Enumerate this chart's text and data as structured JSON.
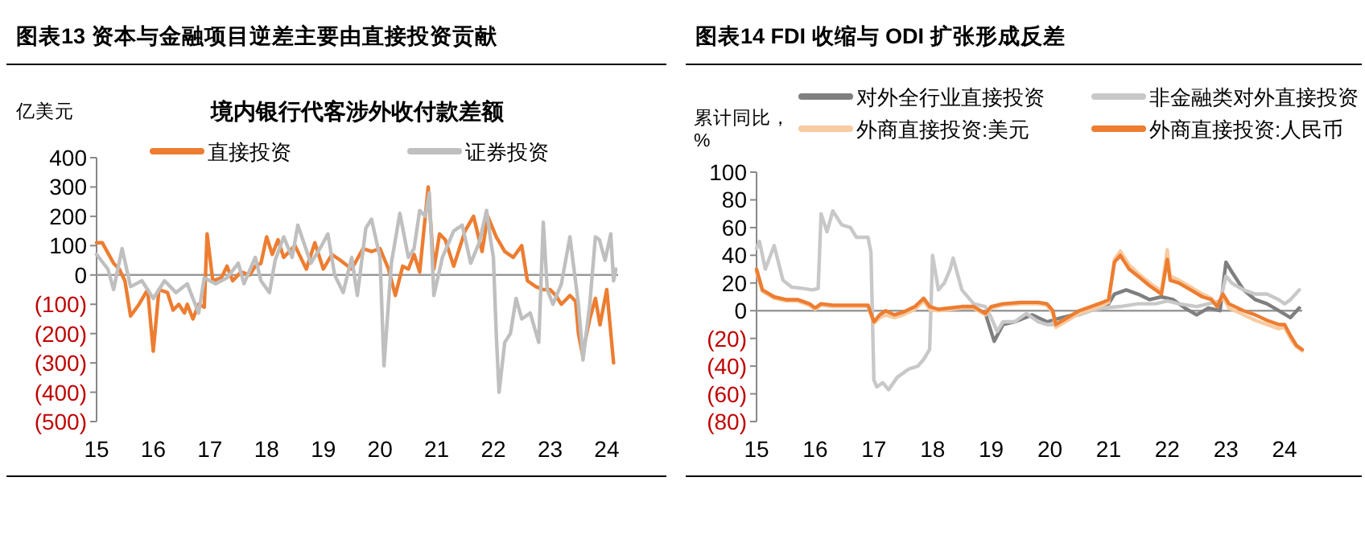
{
  "chart_data": [
    {
      "type": "line",
      "title": "图表13   资本与金融项目逆差主要由直接投资贡献",
      "subtitle": "境内银行代客涉外收付款差额",
      "ylabel": "亿美元",
      "legend": "top",
      "xlim": [
        2015,
        2024.2
      ],
      "xticks": [
        {
          "value": 2015,
          "label": "15"
        },
        {
          "value": 2016,
          "label": "16"
        },
        {
          "value": 2017,
          "label": "17"
        },
        {
          "value": 2018,
          "label": "18"
        },
        {
          "value": 2019,
          "label": "19"
        },
        {
          "value": 2020,
          "label": "20"
        },
        {
          "value": 2021,
          "label": "21"
        },
        {
          "value": 2022,
          "label": "22"
        },
        {
          "value": 2023,
          "label": "23"
        },
        {
          "value": 2024,
          "label": "24"
        }
      ],
      "ylim": [
        -500,
        400
      ],
      "yticks": [
        {
          "value": 400,
          "label": "400"
        },
        {
          "value": 300,
          "label": "300"
        },
        {
          "value": 200,
          "label": "200"
        },
        {
          "value": 100,
          "label": "100"
        },
        {
          "value": 0,
          "label": "0"
        },
        {
          "value": -100,
          "label": "(100)"
        },
        {
          "value": -200,
          "label": "(200)"
        },
        {
          "value": -300,
          "label": "(300)"
        },
        {
          "value": -400,
          "label": "(400)"
        },
        {
          "value": -500,
          "label": "(500)"
        }
      ],
      "series": [
        {
          "name": "直接投资",
          "color": "#ed7d31",
          "x": [
            2015.0,
            2015.1,
            2015.3,
            2015.4,
            2015.5,
            2015.6,
            2015.75,
            2015.9,
            2016.0,
            2016.1,
            2016.25,
            2016.35,
            2016.45,
            2016.55,
            2016.6,
            2016.7,
            2016.8,
            2016.9,
            2016.95,
            2017.05,
            2017.2,
            2017.3,
            2017.4,
            2017.55,
            2017.7,
            2017.8,
            2017.9,
            2018.0,
            2018.1,
            2018.2,
            2018.3,
            2018.5,
            2018.7,
            2018.85,
            2019.0,
            2019.15,
            2019.3,
            2019.5,
            2019.7,
            2019.85,
            2020.0,
            2020.15,
            2020.27,
            2020.4,
            2020.5,
            2020.6,
            2020.7,
            2020.85,
            2020.95,
            2021.05,
            2021.15,
            2021.3,
            2021.5,
            2021.65,
            2021.8,
            2021.9,
            2022.05,
            2022.2,
            2022.35,
            2022.5,
            2022.6,
            2022.75,
            2022.88,
            2023.0,
            2023.1,
            2023.2,
            2023.35,
            2023.45,
            2023.5,
            2023.57,
            2023.7,
            2023.8,
            2023.88,
            2024.0,
            2024.12
          ],
          "values": [
            110,
            110,
            40,
            20,
            -20,
            -140,
            -100,
            -50,
            -260,
            -50,
            -60,
            -120,
            -100,
            -130,
            -100,
            -150,
            -100,
            -110,
            140,
            -20,
            -10,
            30,
            -20,
            10,
            0,
            30,
            40,
            130,
            70,
            120,
            60,
            100,
            20,
            110,
            20,
            70,
            50,
            20,
            90,
            80,
            90,
            20,
            -70,
            30,
            20,
            70,
            10,
            300,
            20,
            140,
            120,
            30,
            150,
            200,
            80,
            200,
            130,
            80,
            60,
            100,
            -20,
            -40,
            -50,
            -50,
            -70,
            -100,
            -70,
            -90,
            -200,
            -270,
            -150,
            -80,
            -170,
            -50,
            -300
          ]
        },
        {
          "name": "证券投资",
          "color": "#bfbfbf",
          "x": [
            2015.0,
            2015.2,
            2015.3,
            2015.45,
            2015.6,
            2015.8,
            2016.0,
            2016.2,
            2016.4,
            2016.6,
            2016.8,
            2016.9,
            2017.1,
            2017.3,
            2017.5,
            2017.6,
            2017.8,
            2017.9,
            2018.05,
            2018.15,
            2018.3,
            2018.45,
            2018.55,
            2018.78,
            2018.97,
            2019.08,
            2019.2,
            2019.35,
            2019.5,
            2019.6,
            2019.75,
            2019.85,
            2020.0,
            2020.07,
            2020.2,
            2020.35,
            2020.5,
            2020.6,
            2020.7,
            2020.8,
            2020.87,
            2020.95,
            2021.1,
            2021.3,
            2021.45,
            2021.6,
            2021.75,
            2021.88,
            2021.95,
            2022.0,
            2022.05,
            2022.1,
            2022.2,
            2022.3,
            2022.4,
            2022.5,
            2022.65,
            2022.8,
            2022.88,
            2022.95,
            2023.05,
            2023.2,
            2023.35,
            2023.5,
            2023.58,
            2023.7,
            2023.8,
            2023.87,
            2023.97,
            2024.07,
            2024.12,
            2024.16
          ],
          "values": [
            70,
            20,
            -50,
            90,
            -40,
            -20,
            -80,
            -20,
            -60,
            -30,
            -130,
            -10,
            -30,
            -10,
            40,
            -30,
            60,
            -20,
            -60,
            50,
            130,
            60,
            170,
            40,
            100,
            140,
            0,
            -60,
            60,
            -70,
            160,
            190,
            60,
            -310,
            40,
            210,
            60,
            90,
            220,
            200,
            280,
            -70,
            60,
            150,
            170,
            40,
            110,
            220,
            120,
            60,
            -200,
            -400,
            -230,
            -200,
            -80,
            -150,
            -130,
            -230,
            180,
            -50,
            -100,
            -30,
            130,
            -100,
            -290,
            -100,
            130,
            120,
            50,
            140,
            -20,
            20
          ]
        }
      ]
    },
    {
      "type": "line",
      "title": "图表14   FDI 收缩与 ODI 扩张形成反差",
      "ylabel": "累计同比，%",
      "legend": "top",
      "xlim": [
        2015,
        2024.3
      ],
      "xticks": [
        {
          "value": 2015,
          "label": "15"
        },
        {
          "value": 2016,
          "label": "16"
        },
        {
          "value": 2017,
          "label": "17"
        },
        {
          "value": 2018,
          "label": "18"
        },
        {
          "value": 2019,
          "label": "19"
        },
        {
          "value": 2020,
          "label": "20"
        },
        {
          "value": 2021,
          "label": "21"
        },
        {
          "value": 2022,
          "label": "22"
        },
        {
          "value": 2023,
          "label": "23"
        },
        {
          "value": 2024,
          "label": "24"
        }
      ],
      "ylim": [
        -80,
        100
      ],
      "yticks": [
        {
          "value": 100,
          "label": "100"
        },
        {
          "value": 80,
          "label": "80"
        },
        {
          "value": 60,
          "label": "60"
        },
        {
          "value": 40,
          "label": "40"
        },
        {
          "value": 20,
          "label": "20"
        },
        {
          "value": 0,
          "label": "0"
        },
        {
          "value": -20,
          "label": "(20)"
        },
        {
          "value": -40,
          "label": "(40)"
        },
        {
          "value": -60,
          "label": "(60)"
        },
        {
          "value": -80,
          "label": "(80)"
        }
      ],
      "series": [
        {
          "name": "对外全行业直接投资",
          "color": "#7f7f7f",
          "x": [
            2018.9,
            2019.05,
            2019.2,
            2019.4,
            2019.7,
            2019.95,
            2020.2,
            2020.5,
            2020.8,
            2021.0,
            2021.1,
            2021.3,
            2021.5,
            2021.7,
            2021.9,
            2022.1,
            2022.3,
            2022.5,
            2022.7,
            2022.9,
            2023.0,
            2023.1,
            2023.3,
            2023.5,
            2023.7,
            2023.9,
            2024.1,
            2024.25
          ],
          "values": [
            -2,
            -22,
            -10,
            -8,
            -3,
            -8,
            -5,
            -2,
            3,
            5,
            12,
            15,
            12,
            8,
            10,
            8,
            2,
            -3,
            2,
            0,
            35,
            28,
            15,
            8,
            5,
            0,
            -5,
            2
          ]
        },
        {
          "name": "非金融类对外直接投资",
          "color": "#c8c8c8",
          "x": [
            2015.0,
            2015.05,
            2015.15,
            2015.3,
            2015.45,
            2015.6,
            2015.8,
            2015.95,
            2016.05,
            2016.1,
            2016.2,
            2016.3,
            2016.45,
            2016.6,
            2016.7,
            2016.9,
            2016.95,
            2017.0,
            2017.05,
            2017.15,
            2017.25,
            2017.4,
            2017.6,
            2017.75,
            2017.85,
            2017.95,
            2018.0,
            2018.1,
            2018.2,
            2018.3,
            2018.35,
            2018.5,
            2018.7,
            2018.9,
            2019.0,
            2019.1,
            2019.2,
            2019.4,
            2019.6,
            2019.8,
            2019.95,
            2020.1,
            2020.3,
            2020.5,
            2020.7,
            2020.9,
            2021.2,
            2021.5,
            2021.8,
            2022.0,
            2022.2,
            2022.5,
            2022.7,
            2022.9,
            2023.0,
            2023.1,
            2023.3,
            2023.5,
            2023.7,
            2023.9,
            2024.0,
            2024.1,
            2024.25
          ],
          "values": [
            45,
            50,
            30,
            47,
            22,
            17,
            16,
            15,
            16,
            70,
            57,
            72,
            62,
            60,
            53,
            53,
            42,
            -50,
            -55,
            -52,
            -57,
            -48,
            -42,
            -40,
            -35,
            -28,
            40,
            15,
            20,
            30,
            38,
            15,
            5,
            3,
            -5,
            -15,
            -8,
            -8,
            -2,
            -8,
            -10,
            -10,
            -5,
            -3,
            0,
            2,
            3,
            5,
            5,
            7,
            5,
            3,
            5,
            7,
            25,
            20,
            15,
            12,
            12,
            8,
            5,
            8,
            15
          ]
        },
        {
          "name": "外商直接投资:美元",
          "color": "#f8cba0",
          "x": [
            2015.0,
            2015.1,
            2015.3,
            2015.5,
            2015.7,
            2015.9,
            2016.0,
            2016.1,
            2016.3,
            2016.6,
            2016.9,
            2017.0,
            2017.1,
            2017.2,
            2017.35,
            2017.5,
            2017.7,
            2017.85,
            2017.95,
            2018.1,
            2018.3,
            2018.5,
            2018.7,
            2018.9,
            2019.0,
            2019.2,
            2019.5,
            2019.8,
            2019.95,
            2020.05,
            2020.1,
            2020.3,
            2020.5,
            2020.7,
            2020.9,
            2021.0,
            2021.1,
            2021.2,
            2021.35,
            2021.5,
            2021.7,
            2021.9,
            2022.0,
            2022.05,
            2022.2,
            2022.4,
            2022.6,
            2022.75,
            2022.85,
            2022.95,
            2023.05,
            2023.3,
            2023.5,
            2023.7,
            2023.9,
            2024.0,
            2024.1,
            2024.2,
            2024.3
          ],
          "values": [
            28,
            14,
            9,
            7,
            7,
            4,
            1,
            4,
            3,
            3,
            3,
            -9,
            -5,
            -3,
            -5,
            -3,
            1,
            7,
            1,
            0,
            1,
            2,
            2,
            -3,
            2,
            4,
            5,
            5,
            4,
            -2,
            -12,
            -7,
            -2,
            1,
            4,
            6,
            37,
            43,
            33,
            27,
            20,
            14,
            44,
            25,
            22,
            17,
            12,
            9,
            4,
            10,
            2,
            -3,
            -7,
            -10,
            -13,
            -12,
            -20,
            -26,
            -29
          ]
        },
        {
          "name": "外商直接投资:人民币",
          "color": "#ed7d31",
          "x": [
            2015.0,
            2015.1,
            2015.3,
            2015.5,
            2015.7,
            2015.9,
            2016.0,
            2016.1,
            2016.3,
            2016.6,
            2016.9,
            2017.0,
            2017.1,
            2017.2,
            2017.35,
            2017.5,
            2017.7,
            2017.85,
            2017.95,
            2018.1,
            2018.3,
            2018.5,
            2018.7,
            2018.9,
            2019.0,
            2019.2,
            2019.5,
            2019.8,
            2019.95,
            2020.05,
            2020.1,
            2020.3,
            2020.5,
            2020.7,
            2020.9,
            2021.0,
            2021.1,
            2021.2,
            2021.35,
            2021.5,
            2021.7,
            2021.9,
            2022.0,
            2022.05,
            2022.2,
            2022.4,
            2022.6,
            2022.75,
            2022.85,
            2022.95,
            2023.05,
            2023.3,
            2023.5,
            2023.7,
            2023.9,
            2024.0,
            2024.1,
            2024.2,
            2024.3
          ],
          "values": [
            30,
            15,
            10,
            8,
            8,
            5,
            2,
            5,
            4,
            4,
            4,
            -8,
            -3,
            0,
            -3,
            -1,
            3,
            9,
            3,
            1,
            2,
            3,
            3,
            -2,
            3,
            5,
            6,
            6,
            5,
            0,
            -10,
            -5,
            0,
            3,
            6,
            8,
            35,
            40,
            30,
            25,
            18,
            12,
            37,
            22,
            20,
            15,
            10,
            8,
            3,
            12,
            5,
            0,
            -3,
            -7,
            -10,
            -10,
            -18,
            -25,
            -28
          ]
        }
      ]
    }
  ]
}
